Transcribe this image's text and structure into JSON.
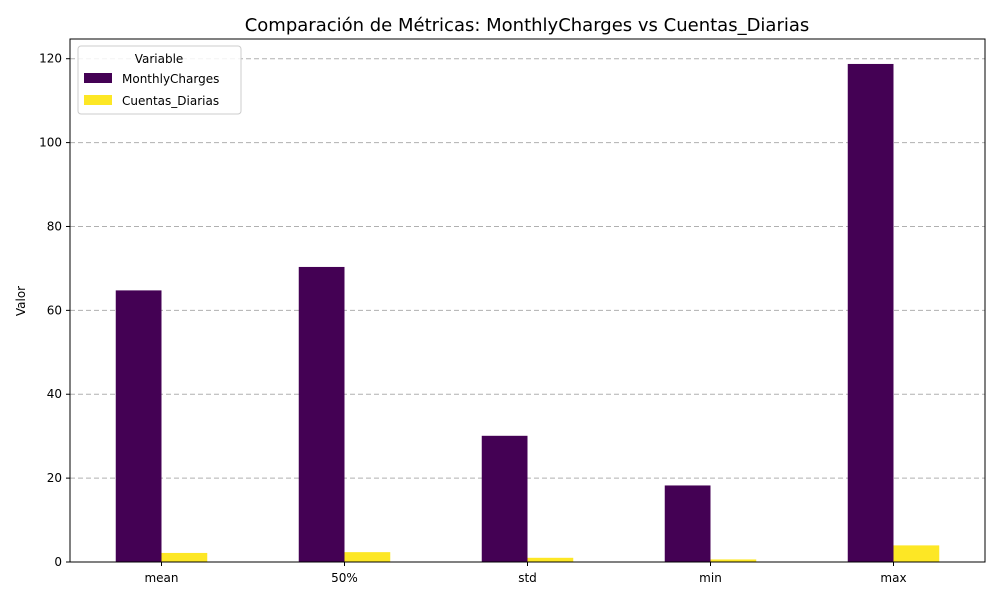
{
  "chart_data": {
    "type": "bar",
    "title": "Comparación de Métricas: MonthlyCharges vs Cuentas_Diarias",
    "xlabel": "",
    "ylabel": "Valor",
    "categories": [
      "mean",
      "50%",
      "std",
      "min",
      "max"
    ],
    "series": [
      {
        "name": "MonthlyCharges",
        "values": [
          64.76,
          70.35,
          30.09,
          18.25,
          118.75
        ]
      },
      {
        "name": "Cuentas_Diarias",
        "values": [
          2.16,
          2.35,
          1.0,
          0.61,
          3.96
        ]
      }
    ],
    "ylim": [
      0,
      124.7
    ],
    "yticks": [
      0,
      20,
      40,
      60,
      80,
      100,
      120
    ],
    "grid": "y-dashed",
    "legend": {
      "title": "Variable",
      "placement": "top-left"
    },
    "colors": [
      "#440154",
      "#fde725"
    ]
  }
}
